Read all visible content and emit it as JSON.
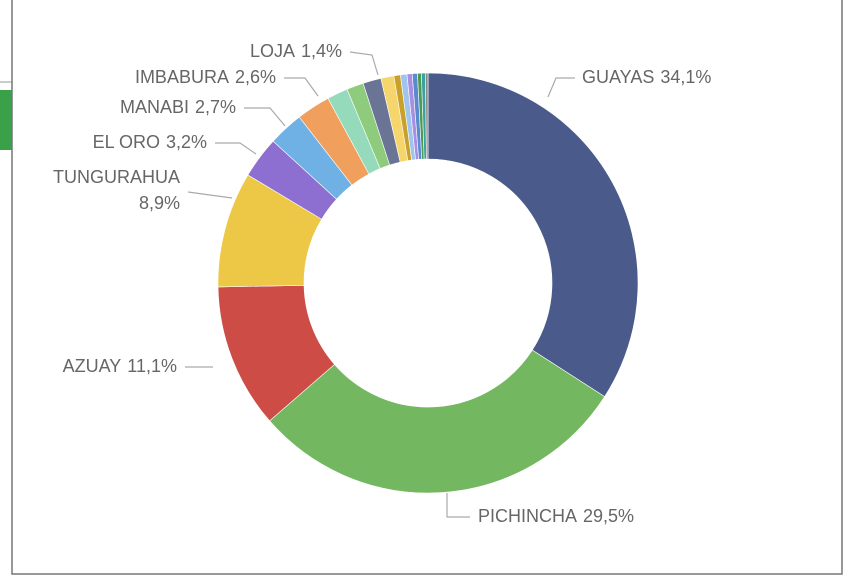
{
  "chart_data": {
    "type": "donut",
    "categories": [
      "GUAYAS",
      "PICHINCHA",
      "AZUAY",
      "TUNGURAHUA",
      "EL ORO",
      "MANABI",
      "IMBABURA",
      null,
      null,
      "LOJA",
      null,
      null,
      null,
      null,
      null,
      null,
      null,
      null
    ],
    "values": [
      34.1,
      29.5,
      11.1,
      8.9,
      3.2,
      2.7,
      2.6,
      1.6,
      1.3,
      1.4,
      1.0,
      0.5,
      0.5,
      0.4,
      0.4,
      0.3,
      0.3,
      0.2
    ],
    "value_labels": [
      "34,1%",
      "29,5%",
      "11,1%",
      "8,9%",
      "3,2%",
      "2,7%",
      "2,6%",
      null,
      null,
      "1,4%",
      null,
      null,
      null,
      null,
      null,
      null,
      null,
      null
    ],
    "colors": [
      "#4a5a8a",
      "#73b761",
      "#cd4c46",
      "#ecc846",
      "#8d6fd1",
      "#6fb1e4",
      "#f0a05c",
      "#95dabb",
      "#8ecb7c",
      "#6a7596",
      "#f5d56c",
      "#c8a02a",
      "#a0c4f0",
      "#a88fe0",
      "#5a8ad0",
      "#4a9a50",
      "#3aa0a0",
      "#888888"
    ]
  }
}
